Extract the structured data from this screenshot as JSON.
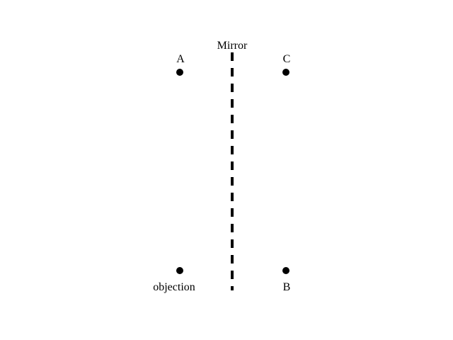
{
  "diagram": {
    "mirror": {
      "label": "Mirror",
      "style": "dashed"
    },
    "points": [
      {
        "id": "A",
        "label": "A"
      },
      {
        "id": "C",
        "label": "C"
      },
      {
        "id": "object",
        "label": "objection"
      },
      {
        "id": "B",
        "label": "B"
      }
    ],
    "colors": {
      "ink": "#000000",
      "background": "#ffffff"
    }
  }
}
